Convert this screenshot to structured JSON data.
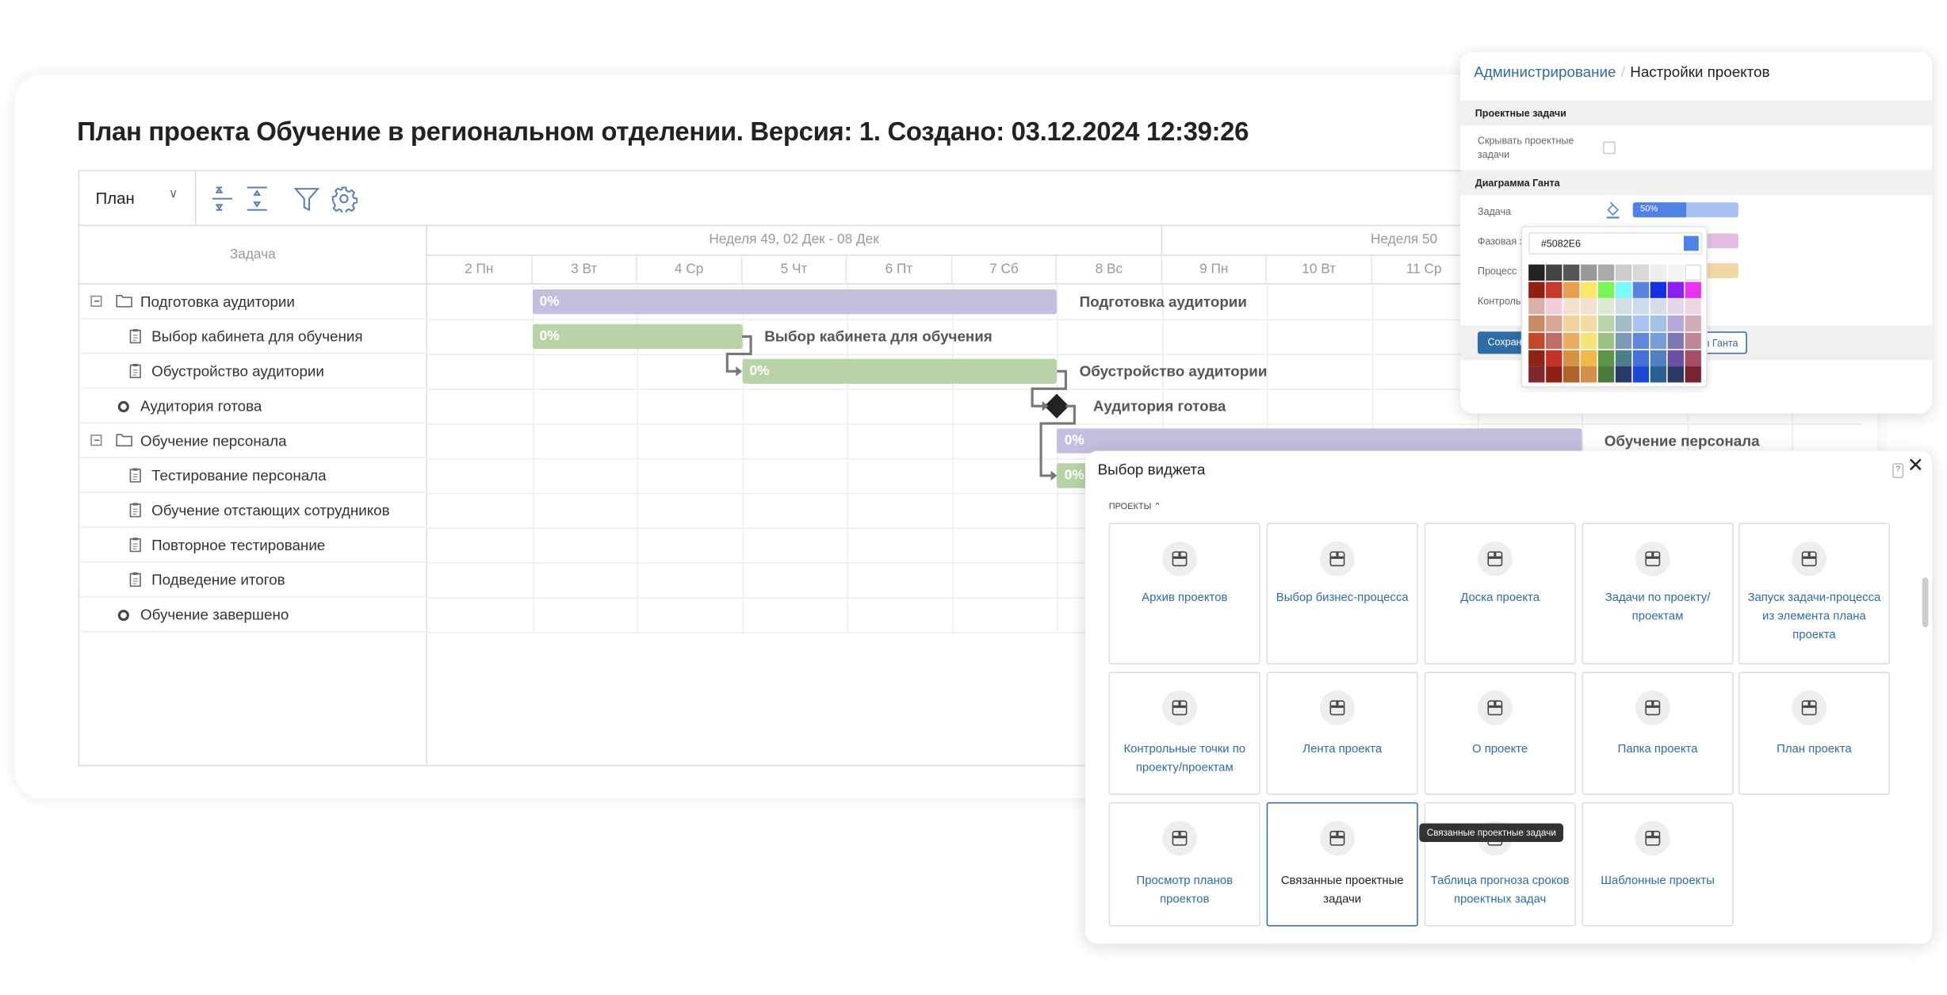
{
  "page_title": "План проекта Обучение в региональном отделении. Версия: 1. Создано: 03.12.2024 12:39:26",
  "toolbar": {
    "view_select": "План",
    "icons": [
      "collapse-rows-icon",
      "expand-rows-icon",
      "filter-icon",
      "gear-icon"
    ]
  },
  "gantt": {
    "task_column_header": "Задача",
    "weeks": [
      {
        "label": "Неделя 49, 02 Дек - 08 Дек",
        "days": 7
      },
      {
        "label": "Неделя 50",
        "days": 7
      }
    ],
    "days": [
      "2 Пн",
      "3 Вт",
      "4 Ср",
      "5 Чт",
      "6 Пт",
      "7 Сб",
      "8 Вс",
      "9 Пн",
      "10 Вт",
      "11 Ср"
    ],
    "first_day": 2,
    "rows": [
      {
        "name": "Подготовка аудитории",
        "type": "group",
        "level": 0,
        "start": 3,
        "end": 7,
        "progress": "0%"
      },
      {
        "name": "Выбор кабинета для обучения",
        "type": "task",
        "level": 1,
        "start": 3,
        "end": 4,
        "progress": "0%"
      },
      {
        "name": "Обустройство аудитории",
        "type": "task",
        "level": 1,
        "start": 5,
        "end": 7,
        "progress": "0%"
      },
      {
        "name": "Аудитория готова",
        "type": "milestone",
        "level": 0,
        "start": 8
      },
      {
        "name": "Обучение персонала",
        "type": "group",
        "level": 0,
        "start": 8,
        "end": 12,
        "progress": "0%"
      },
      {
        "name": "Тестирование персонала",
        "type": "task",
        "level": 1,
        "start": 8,
        "end": 9,
        "progress": "0%"
      },
      {
        "name": "Обучение отстающих сотрудников",
        "type": "task",
        "level": 1
      },
      {
        "name": "Повторное тестирование",
        "type": "task",
        "level": 1
      },
      {
        "name": "Подведение итогов",
        "type": "task",
        "level": 1
      },
      {
        "name": "Обучение завершено",
        "type": "milestone",
        "level": 0
      }
    ],
    "colors": {
      "group": "#c5bfdf",
      "task": "#b9d3a8",
      "milestone": "#222222"
    }
  },
  "admin": {
    "breadcrumb_root": "Администрирование",
    "breadcrumb_sep": "/",
    "breadcrumb_current": "Настройки проектов",
    "section_tasks": "Проектные задачи",
    "hide_tasks_label": "Скрывать проектные задачи",
    "hide_tasks_checked": false,
    "section_gantt": "Диаграмма Ганта",
    "task_label": "Задача",
    "task_progress": "50%",
    "task_color": "#5082E6",
    "task_color_light": "#a8c1f2",
    "phase_label": "Фазовая з",
    "phase_color": "#e2bfe2",
    "process_label": "Процесс",
    "process_color": "#f1d9a4",
    "control_label": "Контрольн",
    "save_button": "Сохрани",
    "gantt_button": "ы Ганта",
    "picker": {
      "hex_value": "#5082E6",
      "palette": [
        [
          "#222222",
          "#444444",
          "#555555",
          "#999999",
          "#aaaaaa",
          "#cccccc",
          "#d9d9d9",
          "#eeeeee",
          "#f3f3f3",
          "#ffffff"
        ],
        [
          "#8e1f12",
          "#c9392a",
          "#e8a050",
          "#fbe86a",
          "#7cf55a",
          "#7cfafa",
          "#5a84dc",
          "#1530e0",
          "#8b1ef0",
          "#e833f0"
        ],
        [
          "#dbb0a8",
          "#efcdd9",
          "#f4e1d0",
          "#f3e2d3",
          "#dfe8d4",
          "#d3dde6",
          "#cfdced",
          "#d7dde9",
          "#e5d6ec",
          "#eed7e3"
        ],
        [
          "#c98b63",
          "#d8a597",
          "#f0d39e",
          "#f0dba4",
          "#bad3a8",
          "#a3bac8",
          "#a9c2f1",
          "#a3c0e7",
          "#b6a9d9",
          "#d4aab9"
        ],
        [
          "#c24a2b",
          "#bd6d66",
          "#e8ad63",
          "#f8e37a",
          "#9dc284",
          "#7f9bb4",
          "#5f86da",
          "#779edb",
          "#7d77b5",
          "#c08792"
        ],
        [
          "#8f2414",
          "#c33327",
          "#d49244",
          "#f1b94a",
          "#5e9448",
          "#4e7f88",
          "#4672d8",
          "#4f80c2",
          "#6a4fa5",
          "#a74d66"
        ],
        [
          "#7f2630",
          "#902015",
          "#ae6128",
          "#d28f4e",
          "#4b7a3c",
          "#2c3a6a",
          "#1e46d6",
          "#2a6093",
          "#2b3a64",
          "#7a2234"
        ]
      ]
    }
  },
  "widget": {
    "title": "Выбор виджета",
    "help": "?",
    "close": "✕",
    "section": "ПРОЕКТЫ ⌃",
    "cards": [
      "Архив проектов",
      "Выбор бизнес-процесса",
      "Доска проекта",
      "Задачи по проекту/ проектам",
      "Запуск задачи-процесса из элемента плана проекта",
      "Контрольные точки по проекту/проектам",
      "Лента проекта",
      "О проекте",
      "Папка проекта",
      "План проекта",
      "Просмотр планов проектов",
      "Связанные проектные задачи",
      "Таблица прогноза сроков проектных задач",
      "Шаблонные проекты"
    ],
    "selected": "Связанные проектные задачи",
    "tooltip": "Связанные проектные задачи"
  }
}
